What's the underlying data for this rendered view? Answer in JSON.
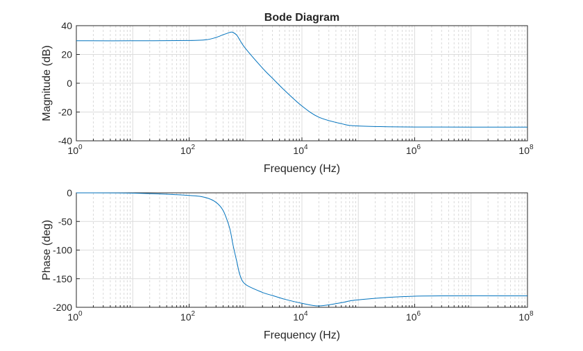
{
  "chart_data": [
    {
      "type": "line",
      "title": "Bode Diagram",
      "xlabel": "Frequency (Hz)",
      "ylabel": "Magnitude (dB)",
      "xscale": "log",
      "xlim": [
        1,
        100000000
      ],
      "ylim": [
        -40,
        40
      ],
      "xticks": [
        {
          "base": "10",
          "exp": "0"
        },
        {
          "base": "10",
          "exp": "2"
        },
        {
          "base": "10",
          "exp": "4"
        },
        {
          "base": "10",
          "exp": "6"
        },
        {
          "base": "10",
          "exp": "8"
        }
      ],
      "yticks": [
        "40",
        "20",
        "0",
        "-20",
        "-40"
      ],
      "ytick_values": [
        40,
        20,
        0,
        -20,
        -40
      ],
      "grid": true,
      "line_color": "#0072BD",
      "x": [
        1,
        10,
        100,
        200,
        300,
        400,
        500,
        550,
        600,
        700,
        800,
        1000,
        2000,
        3000,
        5000,
        10000,
        20000,
        50000,
        100000,
        1000000,
        100000000
      ],
      "y": [
        29.5,
        29.5,
        29.7,
        30.2,
        31.8,
        33.7,
        35.0,
        35.5,
        35.3,
        33.4,
        29.7,
        24.1,
        10.5,
        3.5,
        -5.2,
        -15.8,
        -23.6,
        -28.1,
        -29.7,
        -30.4,
        -30.5
      ]
    },
    {
      "type": "line",
      "title": "",
      "xlabel": "Frequency (Hz)",
      "ylabel": "Phase (deg)",
      "xscale": "log",
      "xlim": [
        1,
        100000000
      ],
      "ylim": [
        -200,
        0
      ],
      "xticks": [
        {
          "base": "10",
          "exp": "0"
        },
        {
          "base": "10",
          "exp": "2"
        },
        {
          "base": "10",
          "exp": "4"
        },
        {
          "base": "10",
          "exp": "6"
        },
        {
          "base": "10",
          "exp": "8"
        }
      ],
      "yticks": [
        "0",
        "-50",
        "-100",
        "-150",
        "-200"
      ],
      "ytick_values": [
        0,
        -50,
        -100,
        -150,
        -200
      ],
      "grid": true,
      "line_color": "#0072BD",
      "x": [
        1,
        10,
        100,
        200,
        300,
        400,
        500,
        550,
        600,
        700,
        800,
        1000,
        2000,
        3000,
        5000,
        10000,
        20000,
        50000,
        100000,
        1000000,
        100000000
      ],
      "y": [
        0,
        -0.5,
        -4.5,
        -8.5,
        -16.6,
        -30.7,
        -55,
        -71,
        -91,
        -120,
        -144,
        -160,
        -174,
        -179.4,
        -186,
        -193,
        -197.6,
        -192,
        -187,
        -180.6,
        -180
      ]
    }
  ]
}
